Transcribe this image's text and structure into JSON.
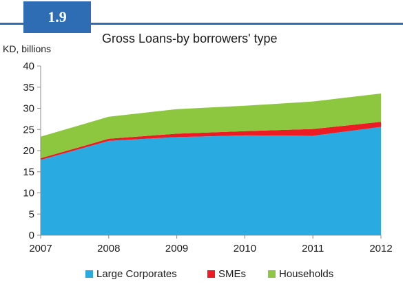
{
  "header": {
    "badge": "1.9",
    "title": "Gross Loans-by borrowers' type"
  },
  "chart_data": {
    "type": "area",
    "stacked": true,
    "title": "Gross Loans-by borrowers' type",
    "ylabel": "KD, billions",
    "xlabel": "",
    "x": [
      "2007",
      "2008",
      "2009",
      "2010",
      "2011",
      "2012"
    ],
    "ylim": [
      0,
      40
    ],
    "yticks": [
      0,
      5,
      10,
      15,
      20,
      25,
      30,
      35,
      40
    ],
    "grid": false,
    "legend_position": "bottom",
    "series": [
      {
        "name": "Large Corporates",
        "color": "#29abe2",
        "values": [
          17.8,
          22.3,
          23.2,
          23.6,
          23.5,
          25.6
        ]
      },
      {
        "name": "SMEs",
        "color": "#ed1c24",
        "values": [
          0.4,
          0.5,
          0.8,
          1.0,
          1.6,
          1.2
        ]
      },
      {
        "name": "Households",
        "color": "#8dc63f",
        "values": [
          5.1,
          5.2,
          5.8,
          6.0,
          6.5,
          6.7
        ]
      }
    ]
  }
}
